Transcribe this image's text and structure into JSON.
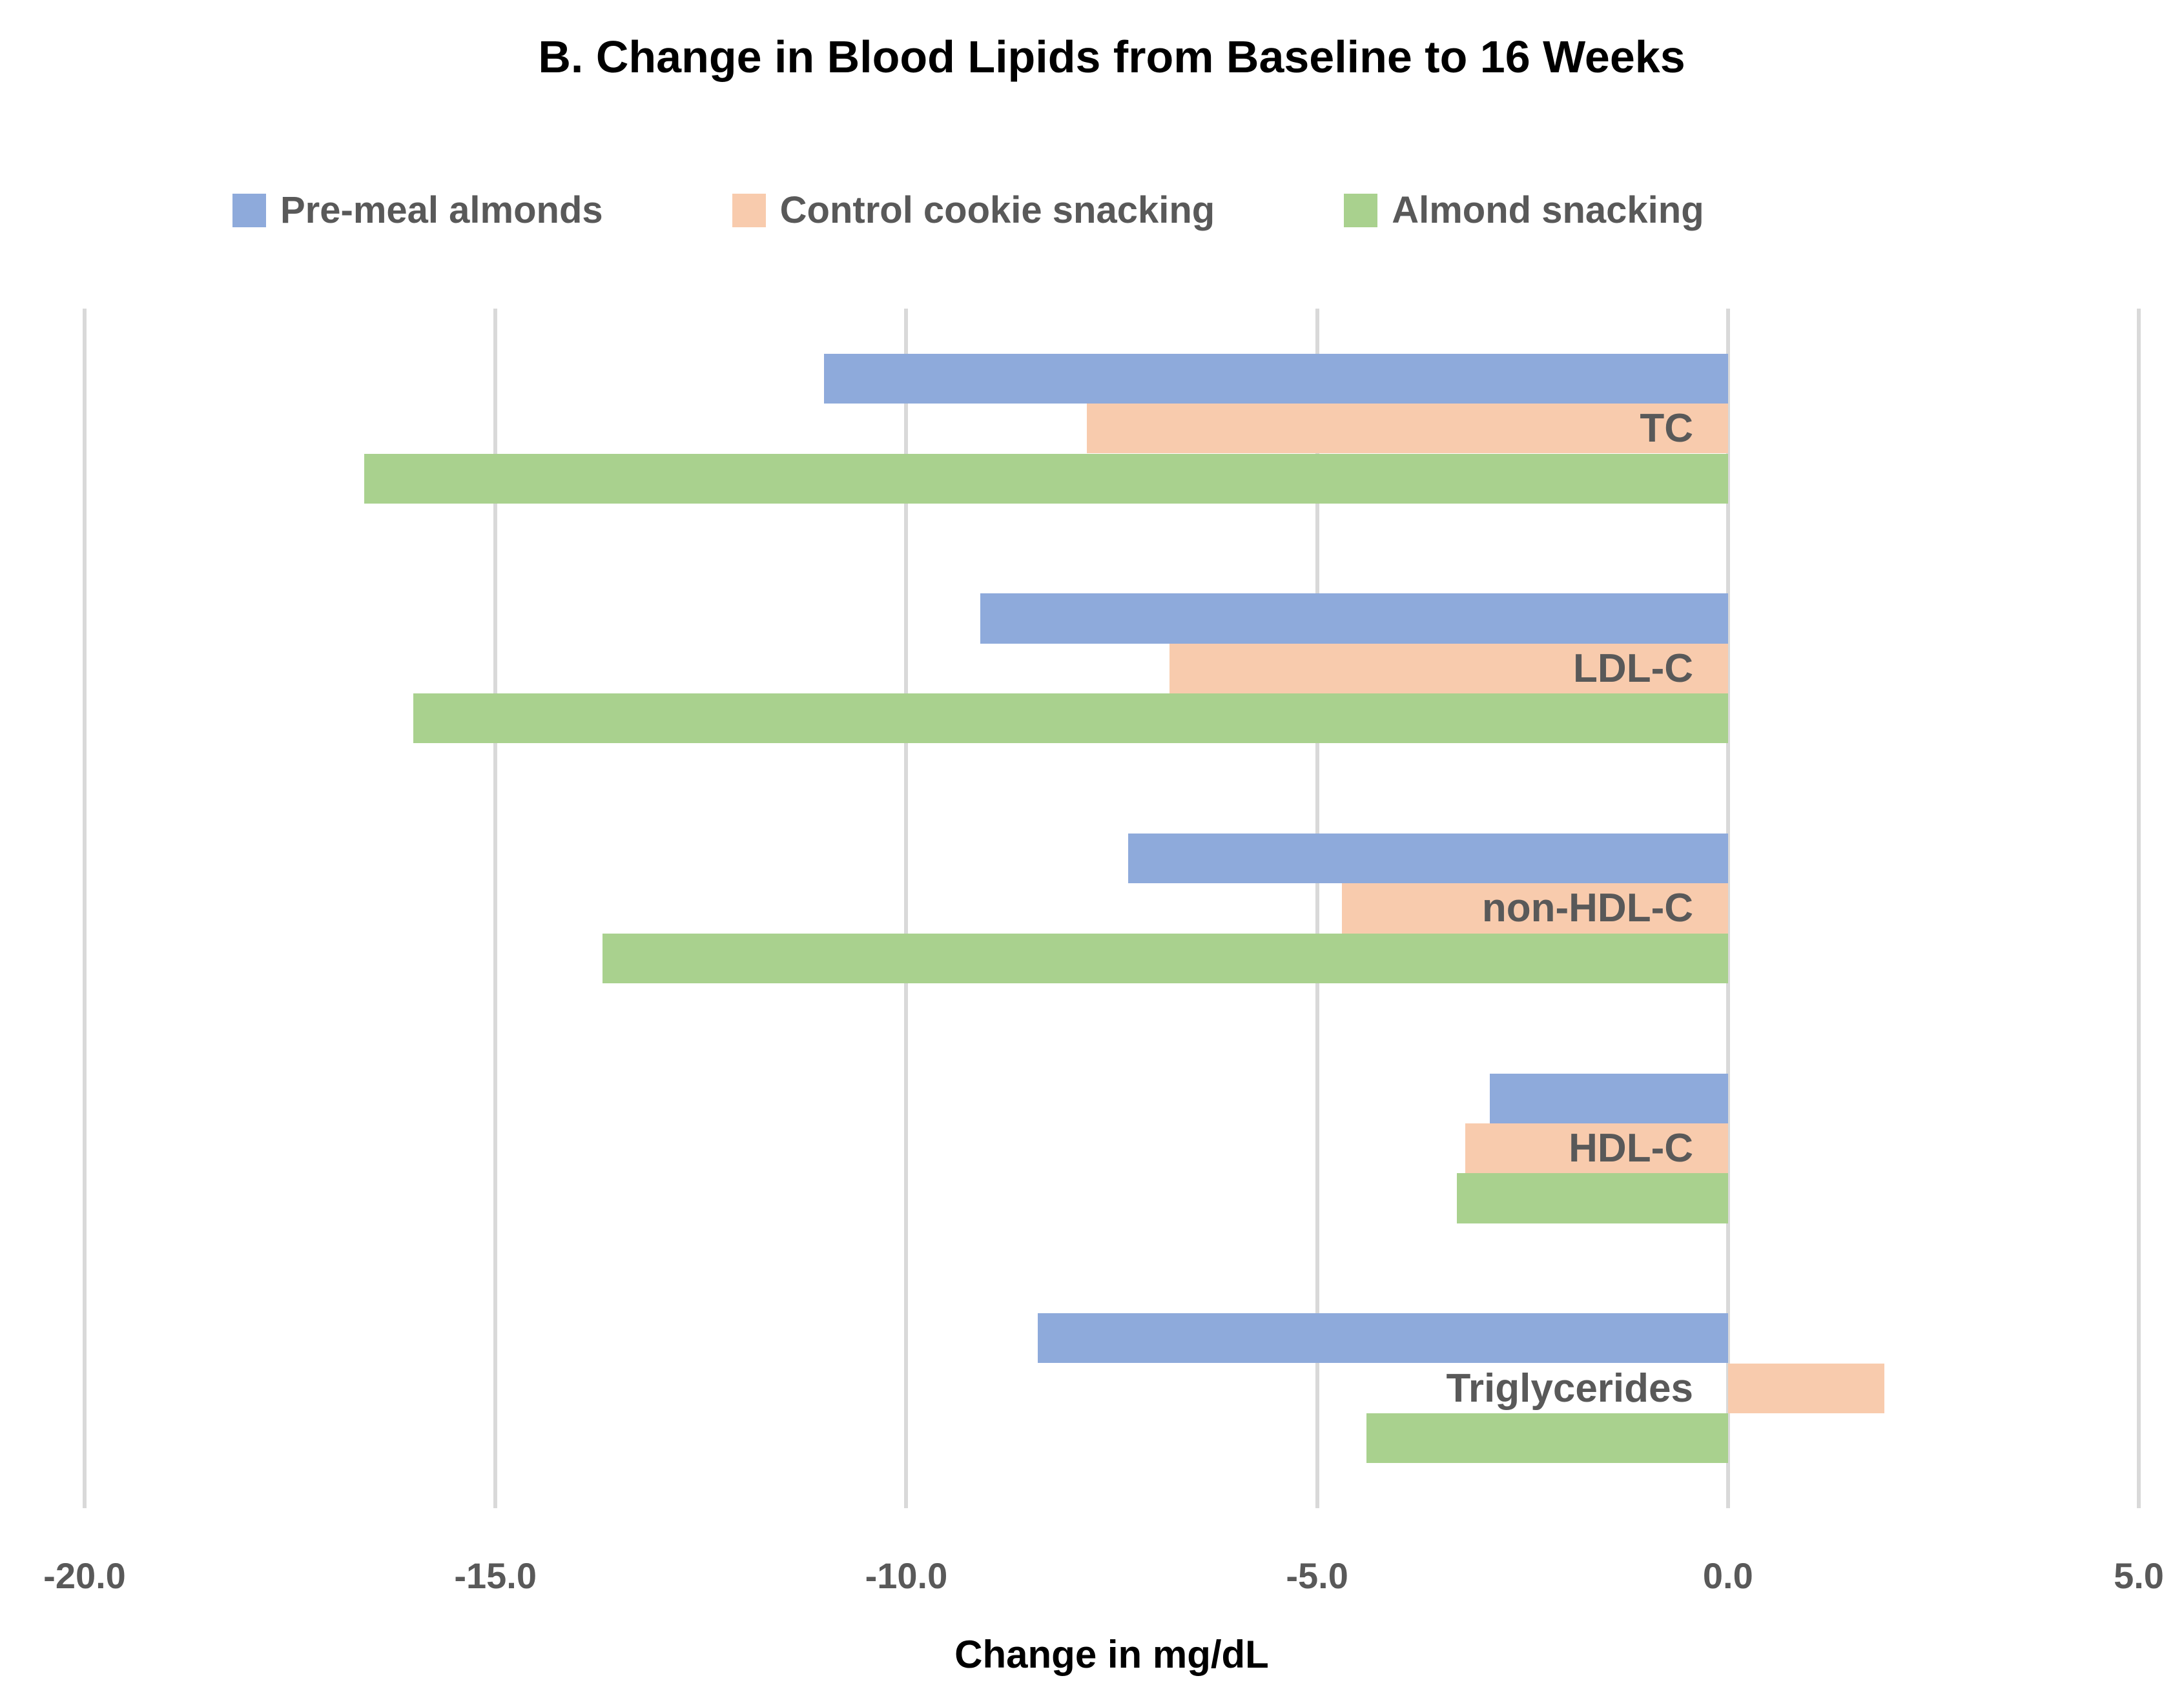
{
  "title": "B. Change in Blood Lipids from Baseline to 16 Weeks",
  "chart_data": {
    "type": "bar",
    "orientation": "horizontal",
    "title": "B. Change in Blood Lipids from Baseline to 16 Weeks",
    "categories": [
      "TC",
      "LDL-C",
      "non-HDL-C",
      "HDL-C",
      "Triglycerides"
    ],
    "series": [
      {
        "name": "Pre-meal almonds",
        "color": "#8EAADB",
        "values": [
          -11.0,
          -9.1,
          -7.3,
          -2.9,
          -8.4
        ]
      },
      {
        "name": "Control cookie snacking",
        "color": "#F8CBAD",
        "values": [
          -7.8,
          -6.8,
          -4.7,
          -3.2,
          1.9
        ]
      },
      {
        "name": "Almond snacking",
        "color": "#A9D18E",
        "values": [
          -16.6,
          -16.0,
          -13.7,
          -3.3,
          -4.4
        ]
      }
    ],
    "xlabel": "Change in mg/dL",
    "xlim": [
      -20,
      5
    ],
    "xticks": [
      -20,
      -15,
      -10,
      -5,
      0,
      5
    ],
    "xtick_labels": [
      "-20.0",
      "-15.0",
      "-10.0",
      "-5.0",
      "0.0",
      "5.0"
    ],
    "grid": "vertical",
    "legend_position": "top",
    "gridline_color": "#D9D9D9",
    "label_color": "#595959"
  }
}
